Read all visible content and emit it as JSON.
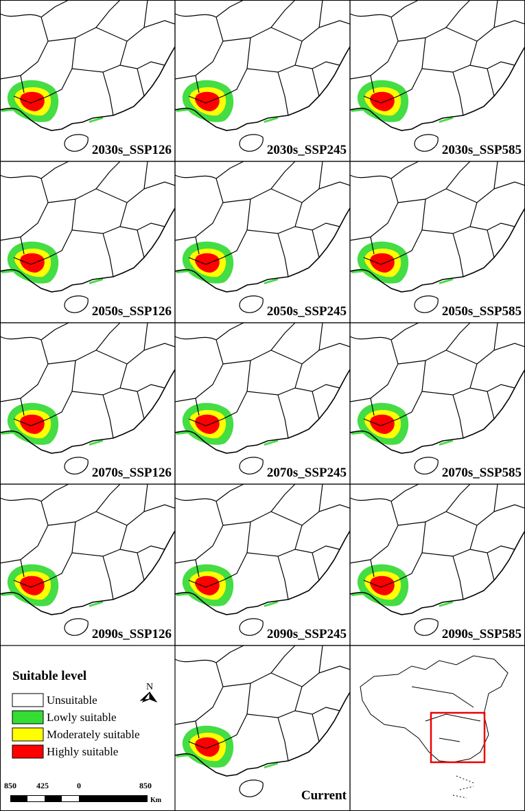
{
  "panels": [
    {
      "label": "2030s_SSP126"
    },
    {
      "label": "2030s_SSP245"
    },
    {
      "label": "2030s_SSP585"
    },
    {
      "label": "2050s_SSP126"
    },
    {
      "label": "2050s_SSP245"
    },
    {
      "label": "2050s_SSP585"
    },
    {
      "label": "2070s_SSP126"
    },
    {
      "label": "2070s_SSP245"
    },
    {
      "label": "2070s_SSP585"
    },
    {
      "label": "2090s_SSP126"
    },
    {
      "label": "2090s_SSP245"
    },
    {
      "label": "2090s_SSP585"
    }
  ],
  "current": {
    "label": "Current"
  },
  "legend": {
    "title": "Suitable level",
    "items": [
      {
        "label": "Unsuitable",
        "color": "#ffffff"
      },
      {
        "label": "Lowly suitable",
        "color": "#33dd33"
      },
      {
        "label": "Moderately suitable",
        "color": "#ffff00"
      },
      {
        "label": "Highly suitable",
        "color": "#ff0000"
      }
    ]
  },
  "north": "N",
  "scale": {
    "labels": [
      "850",
      "425",
      "0",
      "850"
    ],
    "unit": "Km"
  }
}
